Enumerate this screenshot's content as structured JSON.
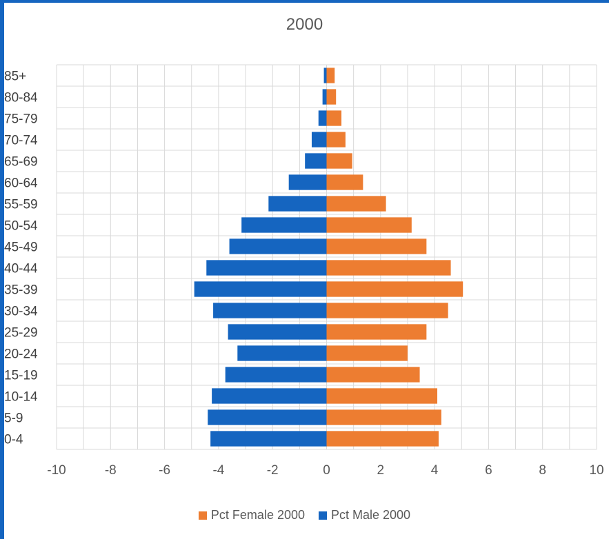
{
  "chart_data": {
    "type": "bar",
    "orientation": "horizontal",
    "title": "2000",
    "categories": [
      "0-4",
      "5-9",
      "10-14",
      "15-19",
      "20-24",
      "25-29",
      "30-34",
      "35-39",
      "40-44",
      "45-49",
      "50-54",
      "55-59",
      "60-64",
      "65-69",
      "70-74",
      "75-79",
      "80-84",
      "85+"
    ],
    "series": [
      {
        "name": "Pct Female 2000",
        "color": "#ed7d31",
        "values": [
          4.15,
          4.25,
          4.1,
          3.45,
          3.0,
          3.7,
          4.5,
          5.05,
          4.6,
          3.7,
          3.15,
          2.2,
          1.35,
          0.95,
          0.7,
          0.55,
          0.35,
          0.3
        ]
      },
      {
        "name": "Pct Male 2000",
        "color": "#1565c0",
        "values": [
          -4.3,
          -4.4,
          -4.25,
          -3.75,
          -3.3,
          -3.65,
          -4.2,
          -4.9,
          -4.45,
          -3.6,
          -3.15,
          -2.15,
          -1.4,
          -0.8,
          -0.55,
          -0.3,
          -0.15,
          -0.1
        ]
      }
    ],
    "xlim": [
      -10,
      10
    ],
    "xticks": [
      -10,
      -8,
      -6,
      -4,
      -2,
      0,
      2,
      4,
      6,
      8,
      10
    ],
    "grid": true,
    "legend_position": "bottom"
  }
}
